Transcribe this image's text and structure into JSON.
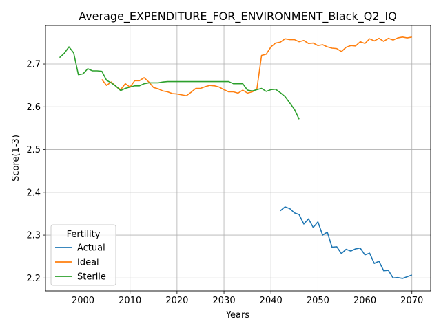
{
  "chart_data": {
    "type": "line",
    "title": "Average_EXPENDITURE_FOR_ENVIRONMENT_Black_Q2_IQ",
    "xlabel": "Years",
    "ylabel": "Score(1-3)",
    "xlim": [
      1992,
      2074
    ],
    "ylim": [
      2.17,
      2.79
    ],
    "xticks": [
      2000,
      2010,
      2020,
      2030,
      2040,
      2050,
      2060,
      2070
    ],
    "yticks": [
      2.2,
      2.3,
      2.4,
      2.5,
      2.6,
      2.7
    ],
    "ytick_labels": [
      "2.2",
      "2.3",
      "2.4",
      "2.5",
      "2.6",
      "2.7"
    ],
    "grid": true,
    "legend": {
      "title": "Fertility",
      "placement": "lower-left"
    },
    "series": [
      {
        "name": "Actual",
        "color": "#1f77b4",
        "x": [
          2042,
          2043,
          2044,
          2045,
          2046,
          2047,
          2048,
          2049,
          2050,
          2051,
          2052,
          2053,
          2054,
          2055,
          2056,
          2057,
          2058,
          2059,
          2060,
          2061,
          2062,
          2063,
          2064,
          2065,
          2066,
          2067,
          2068,
          2069,
          2070
        ],
        "y": [
          2.357,
          2.366,
          2.362,
          2.352,
          2.348,
          2.326,
          2.338,
          2.318,
          2.331,
          2.3,
          2.307,
          2.272,
          2.273,
          2.257,
          2.267,
          2.263,
          2.268,
          2.27,
          2.254,
          2.258,
          2.234,
          2.239,
          2.217,
          2.218,
          2.2,
          2.201,
          2.199,
          2.203,
          2.207
        ]
      },
      {
        "name": "Ideal",
        "color": "#ff7f0e",
        "x": [
          2004,
          2005,
          2006,
          2007,
          2008,
          2009,
          2010,
          2011,
          2012,
          2013,
          2014,
          2015,
          2016,
          2017,
          2018,
          2019,
          2020,
          2021,
          2022,
          2023,
          2024,
          2025,
          2026,
          2027,
          2028,
          2029,
          2030,
          2031,
          2032,
          2033,
          2034,
          2035,
          2036,
          2037,
          2038,
          2039,
          2040,
          2041,
          2042,
          2043,
          2044,
          2045,
          2046,
          2047,
          2048,
          2049,
          2050,
          2051,
          2052,
          2053,
          2054,
          2055,
          2056,
          2057,
          2058,
          2059,
          2060,
          2061,
          2062,
          2063,
          2064,
          2065,
          2066,
          2067,
          2068,
          2069,
          2070
        ],
        "y": [
          2.664,
          2.65,
          2.658,
          2.648,
          2.64,
          2.654,
          2.646,
          2.661,
          2.661,
          2.668,
          2.658,
          2.645,
          2.642,
          2.637,
          2.635,
          2.631,
          2.63,
          2.628,
          2.626,
          2.634,
          2.643,
          2.643,
          2.647,
          2.65,
          2.649,
          2.646,
          2.64,
          2.635,
          2.635,
          2.632,
          2.639,
          2.632,
          2.635,
          2.641,
          2.72,
          2.723,
          2.74,
          2.749,
          2.751,
          2.759,
          2.757,
          2.757,
          2.752,
          2.755,
          2.748,
          2.749,
          2.743,
          2.745,
          2.74,
          2.737,
          2.736,
          2.729,
          2.739,
          2.743,
          2.742,
          2.752,
          2.748,
          2.759,
          2.754,
          2.76,
          2.753,
          2.76,
          2.756,
          2.761,
          2.763,
          2.761,
          2.763
        ]
      },
      {
        "name": "Sterile",
        "color": "#2ca02c",
        "x": [
          1995,
          1996,
          1997,
          1998,
          1999,
          2000,
          2001,
          2002,
          2003,
          2004,
          2005,
          2006,
          2007,
          2008,
          2009,
          2010,
          2011,
          2012,
          2013,
          2014,
          2015,
          2016,
          2017,
          2018,
          2019,
          2020,
          2021,
          2022,
          2023,
          2024,
          2025,
          2026,
          2027,
          2028,
          2029,
          2030,
          2031,
          2032,
          2033,
          2034,
          2035,
          2036,
          2037,
          2038,
          2039,
          2040,
          2041,
          2042,
          2043,
          2044,
          2045,
          2046
        ],
        "y": [
          2.715,
          2.725,
          2.74,
          2.726,
          2.675,
          2.677,
          2.689,
          2.684,
          2.684,
          2.683,
          2.662,
          2.656,
          2.648,
          2.638,
          2.643,
          2.646,
          2.649,
          2.649,
          2.654,
          2.656,
          2.656,
          2.656,
          2.658,
          2.659,
          2.659,
          2.659,
          2.659,
          2.659,
          2.659,
          2.659,
          2.659,
          2.659,
          2.659,
          2.659,
          2.659,
          2.659,
          2.659,
          2.654,
          2.654,
          2.654,
          2.639,
          2.637,
          2.64,
          2.643,
          2.636,
          2.64,
          2.641,
          2.633,
          2.624,
          2.609,
          2.594,
          2.571
        ]
      }
    ]
  }
}
